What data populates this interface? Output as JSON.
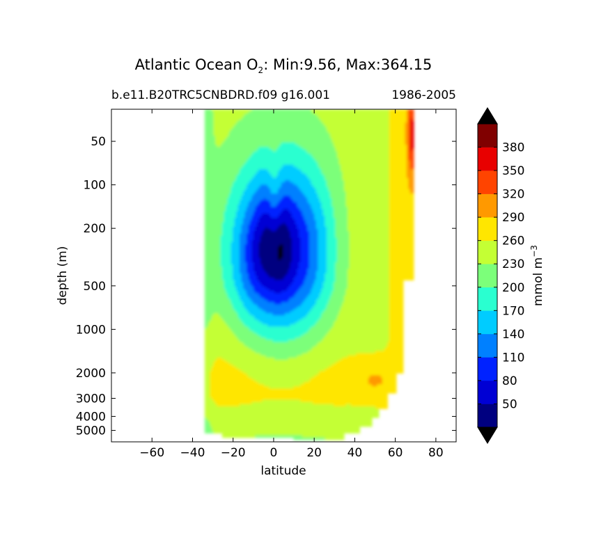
{
  "chart_data": {
    "type": "heatmap",
    "title_prefix": "Atlantic Ocean O",
    "title_sub": "2",
    "title_suffix": ": Min:9.56, Max:364.15",
    "subtitle_left": "b.e11.B20TRC5CNBDRD.f09 g16.001",
    "subtitle_right": "1986-2005",
    "xlabel": "latitude",
    "ylabel": "depth (m)",
    "xlim": [
      -80,
      90
    ],
    "xticks": [
      -60,
      -40,
      -20,
      0,
      20,
      40,
      60,
      80
    ],
    "xtick_labels": [
      "−60",
      "−40",
      "−20",
      "0",
      "20",
      "40",
      "60",
      "80"
    ],
    "ylim": [
      30,
      6000
    ],
    "yscale": "log",
    "yticks": [
      50,
      100,
      200,
      500,
      1000,
      2000,
      3000,
      4000,
      5000
    ],
    "ytick_labels": [
      "50",
      "100",
      "200",
      "500",
      "1000",
      "2000",
      "3000",
      "4000",
      "5000"
    ],
    "data_extent": {
      "lat_min": -34,
      "lat_max": 69
    },
    "colorbar": {
      "label_main": "mmol m",
      "label_exp": "−3",
      "levels": [
        20,
        50,
        80,
        110,
        140,
        170,
        200,
        230,
        260,
        290,
        320,
        350,
        380,
        410
      ],
      "tick_values": [
        50,
        80,
        110,
        140,
        170,
        200,
        230,
        260,
        290,
        320,
        350,
        380
      ],
      "tick_labels": [
        "50",
        "80",
        "110",
        "140",
        "170",
        "200",
        "230",
        "260",
        "290",
        "320",
        "350",
        "380"
      ],
      "colors": [
        "#000080",
        "#0000d4",
        "#0022ff",
        "#0080ff",
        "#00ccff",
        "#2affd0",
        "#7cff7a",
        "#c4ff34",
        "#ffe600",
        "#ff9900",
        "#ff4400",
        "#e80000",
        "#800000"
      ],
      "under_color": "#000000",
      "over_color": "#000000"
    }
  }
}
